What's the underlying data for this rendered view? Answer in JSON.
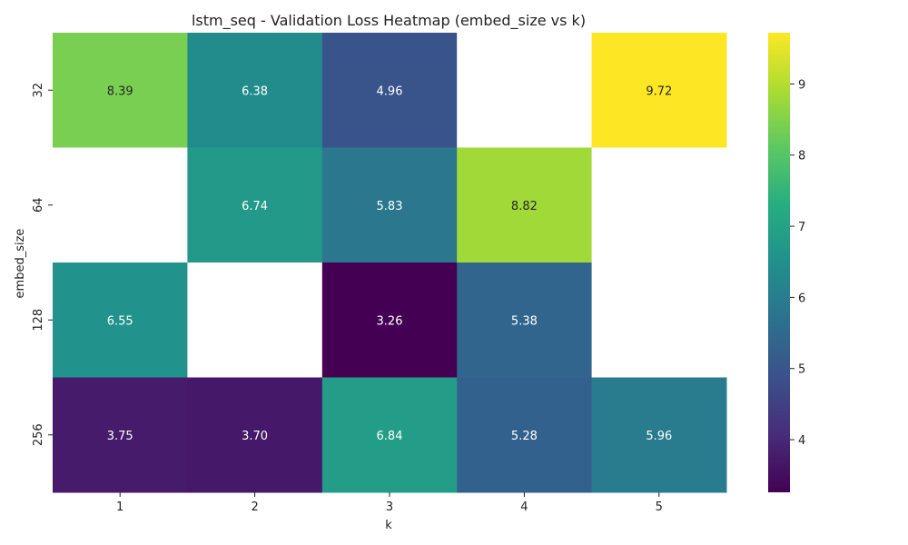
{
  "chart_data": {
    "type": "heatmap",
    "title": "lstm_seq - Validation Loss Heatmap (embed_size vs k)",
    "xlabel": "k",
    "ylabel": "embed_size",
    "x_categories": [
      "1",
      "2",
      "3",
      "4",
      "5"
    ],
    "y_categories": [
      "32",
      "64",
      "128",
      "256"
    ],
    "values": [
      [
        8.39,
        6.38,
        4.96,
        null,
        9.72
      ],
      [
        null,
        6.74,
        5.83,
        8.82,
        null
      ],
      [
        6.55,
        null,
        3.26,
        5.38,
        null
      ],
      [
        3.75,
        3.7,
        6.84,
        5.28,
        5.96
      ]
    ],
    "value_labels": [
      [
        "8.39",
        "6.38",
        "4.96",
        "",
        "9.72"
      ],
      [
        "",
        "6.74",
        "5.83",
        "8.82",
        ""
      ],
      [
        "6.55",
        "",
        "3.26",
        "5.38",
        ""
      ],
      [
        "3.75",
        "3.70",
        "6.84",
        "5.28",
        "5.96"
      ]
    ],
    "colormap": "viridis",
    "color_range": [
      3.26,
      9.72
    ],
    "colorbar_ticks": [
      "4",
      "5",
      "6",
      "7",
      "8",
      "9"
    ],
    "grid": false,
    "colorbar_placement": "right",
    "missing_cell_color": "#ffffff"
  }
}
